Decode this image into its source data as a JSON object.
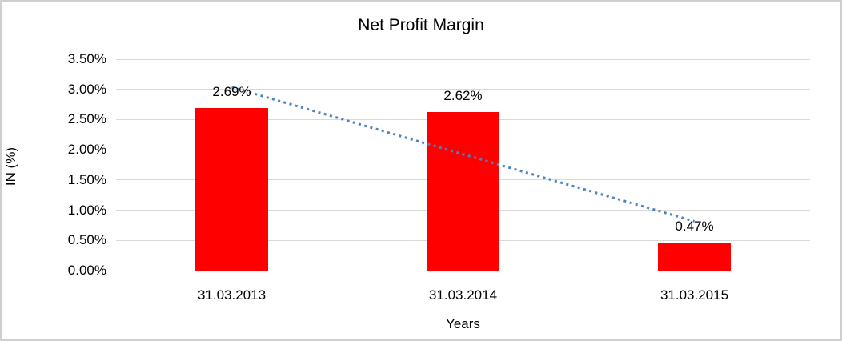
{
  "chart": {
    "title": "Net Profit Margin",
    "xlabel": "Years",
    "ylabel": "IN (%)"
  },
  "chart_data": {
    "type": "bar",
    "title": "Net Profit Margin",
    "categories": [
      "31.03.2013",
      "31.03.2014",
      "31.03.2015"
    ],
    "values": [
      2.69,
      2.62,
      0.47
    ],
    "data_labels": [
      "2.69%",
      "2.62%",
      "0.47%"
    ],
    "xlabel": "Years",
    "ylabel": "IN (%)",
    "ylim": [
      0,
      3.5
    ],
    "ytick_step": 0.5,
    "ytick_labels": [
      "0.00%",
      "0.50%",
      "1.00%",
      "1.50%",
      "2.00%",
      "2.50%",
      "3.00%",
      "3.50%"
    ],
    "bar_color": "#ff0000",
    "gridline_color": "#d9d9d9",
    "axis_line_color": "#d9d9d9",
    "trendline": {
      "type": "linear",
      "style": "dotted",
      "color": "#4f81bd"
    },
    "legend": "none",
    "grid": "horizontal"
  }
}
